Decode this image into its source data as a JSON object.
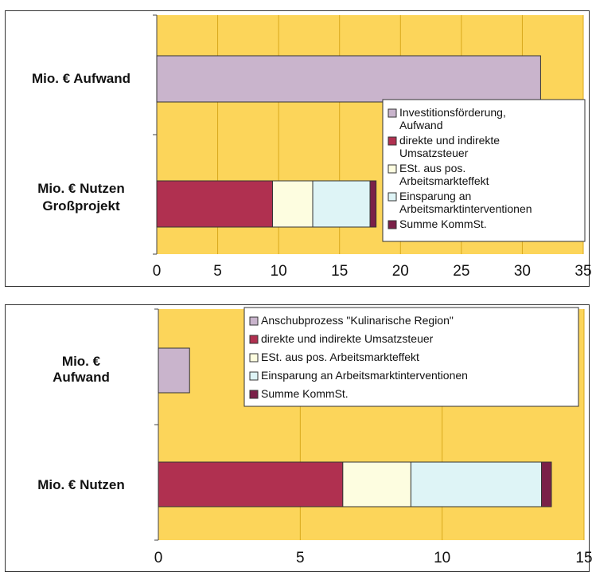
{
  "chart_data": [
    {
      "type": "bar",
      "orientation": "horizontal",
      "stacked": true,
      "categories": [
        "Mio. € Aufwand",
        "Mio. € Nutzen Großprojekt"
      ],
      "category_lines": [
        [
          "Mio. € Aufwand"
        ],
        [
          "Mio. € Nutzen",
          "Großprojekt"
        ]
      ],
      "series": [
        {
          "name": "Investitionsförderung, Aufwand",
          "legend_lines": [
            "Investitionsförderung,",
            "Aufwand"
          ],
          "color": "#c9b4cc",
          "values": [
            31.5,
            0
          ]
        },
        {
          "name": "direkte und indirekte Umsatzsteuer",
          "legend_lines": [
            "direkte und indirekte",
            "Umsatzsteuer"
          ],
          "color": "#b03050",
          "values": [
            0,
            9.5
          ]
        },
        {
          "name": "ESt. aus pos. Arbeitsmarkteffekt",
          "legend_lines": [
            "ESt. aus pos.",
            "Arbeitsmarkteffekt"
          ],
          "color": "#fdfde0",
          "values": [
            0,
            3.3
          ]
        },
        {
          "name": "Einsparung an Arbeitsmarktinterventionen",
          "legend_lines": [
            "Einsparung an",
            "Arbeitsmarktinterventionen"
          ],
          "color": "#def4f6",
          "values": [
            0,
            4.7
          ]
        },
        {
          "name": "Summe KommSt.",
          "legend_lines": [
            "Summe KommSt."
          ],
          "color": "#7a2048",
          "values": [
            0,
            0.5
          ]
        }
      ],
      "xlim": [
        0,
        35
      ],
      "xticks": [
        0,
        5,
        10,
        15,
        20,
        25,
        30,
        35
      ],
      "grid": true,
      "legend": "right",
      "plot_background": "#fcd55a"
    },
    {
      "type": "bar",
      "orientation": "horizontal",
      "stacked": true,
      "categories": [
        "Mio. € Aufwand",
        "Mio. € Nutzen"
      ],
      "category_lines": [
        [
          "Mio. €",
          "Aufwand"
        ],
        [
          "Mio. € Nutzen"
        ]
      ],
      "series": [
        {
          "name": "Anschubprozess \"Kulinarische Region\"",
          "legend_lines": [
            "Anschubprozess \"Kulinarische Region\""
          ],
          "color": "#c9b4cc",
          "values": [
            1.1,
            0
          ]
        },
        {
          "name": "direkte und indirekte Umsatzsteuer",
          "legend_lines": [
            "direkte und indirekte Umsatzsteuer"
          ],
          "color": "#b03050",
          "values": [
            0,
            6.5
          ]
        },
        {
          "name": "ESt. aus pos. Arbeitsmarkteffekt",
          "legend_lines": [
            "ESt. aus pos. Arbeitsmarkteffekt"
          ],
          "color": "#fdfde0",
          "values": [
            0,
            2.4
          ]
        },
        {
          "name": "Einsparung an Arbeitsmarktinterventionen",
          "legend_lines": [
            "Einsparung an Arbeitsmarktinterventionen"
          ],
          "color": "#def4f6",
          "values": [
            0,
            4.6
          ]
        },
        {
          "name": "Summe KommSt.",
          "legend_lines": [
            "Summe KommSt."
          ],
          "color": "#7a2048",
          "values": [
            0,
            0.35
          ]
        }
      ],
      "xlim": [
        0,
        15
      ],
      "xticks": [
        0,
        5,
        10,
        15
      ],
      "grid": true,
      "legend": "top-right",
      "plot_background": "#fcd55a"
    }
  ]
}
